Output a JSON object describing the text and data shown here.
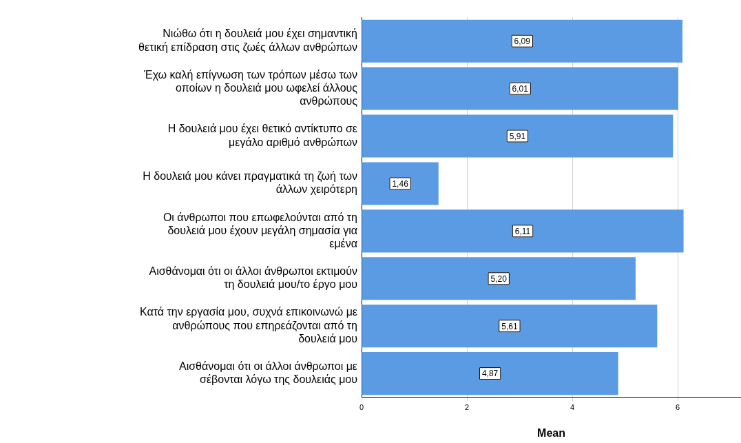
{
  "chart_data": {
    "type": "bar",
    "orientation": "horizontal",
    "xlabel": "Mean",
    "categories": [
      "Νιώθω ότι η δουλειά μου έχει σημαντική θετική επίδραση στις ζωές άλλων ανθρώπων",
      "Έχω καλή επίγνωση των τρόπων μέσω των οποίων η δουλειά μου ωφελεί άλλους ανθρώπους",
      "Η δουλειά μου έχει θετικό αντίκτυπο σε μεγάλο αριθμό ανθρώπων",
      "Η δουλειά μου κάνει πραγματικά τη ζωή των άλλων χειρότερη",
      "Οι άνθρωποι που επωφελούνται από τη δουλειά μου έχουν μεγάλη σημασία για εμένα",
      "Αισθάνομαι ότι οι άλλοι άνθρωποι εκτιμούν τη δουλειά μου/το έργο μου",
      "Κατά την εργασία μου, συχνά επικοινωνώ με ανθρώπους που επηρεάζονται από τη δουλειά μου",
      "Αισθάνομαι ότι οι άλλοι άνθρωποι με σέβονται λόγω της δουλειάς μου"
    ],
    "values": [
      6.09,
      6.01,
      5.91,
      1.46,
      6.11,
      5.2,
      5.61,
      4.87
    ],
    "value_labels": [
      "6,09",
      "6,01",
      "5,91",
      "1,46",
      "6,11",
      "5,20",
      "5,61",
      "4,87"
    ],
    "color": "#5a9be4",
    "xlim": [
      0,
      7.2
    ],
    "xticks": [
      0,
      2,
      4,
      6
    ],
    "grid": "x"
  }
}
